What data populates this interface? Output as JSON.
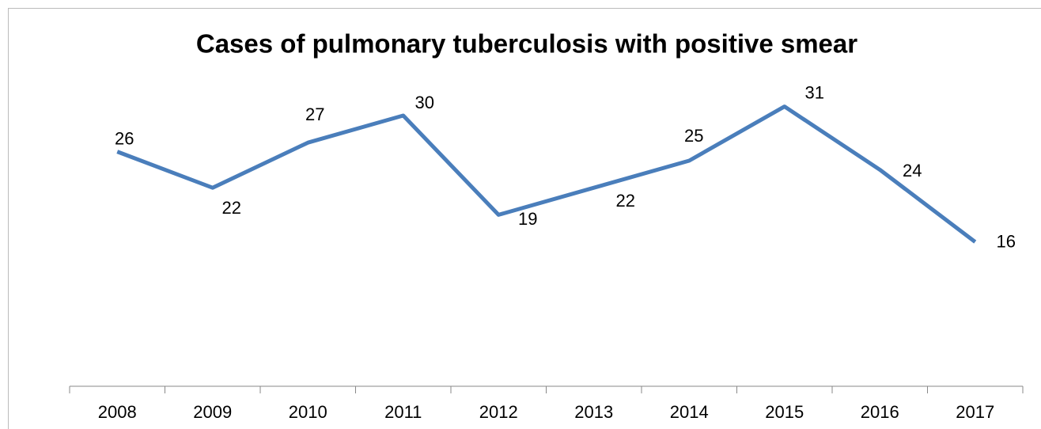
{
  "chart_data": {
    "type": "line",
    "title": "Cases of pulmonary tuberculosis with positive smear",
    "categories": [
      "2008",
      "2009",
      "2010",
      "2011",
      "2012",
      "2013",
      "2014",
      "2015",
      "2016",
      "2017"
    ],
    "values": [
      26,
      22,
      27,
      30,
      19,
      22,
      25,
      31,
      24,
      16
    ],
    "color": "#4a7ebb",
    "ylim": [
      0,
      35
    ],
    "grid": false
  }
}
